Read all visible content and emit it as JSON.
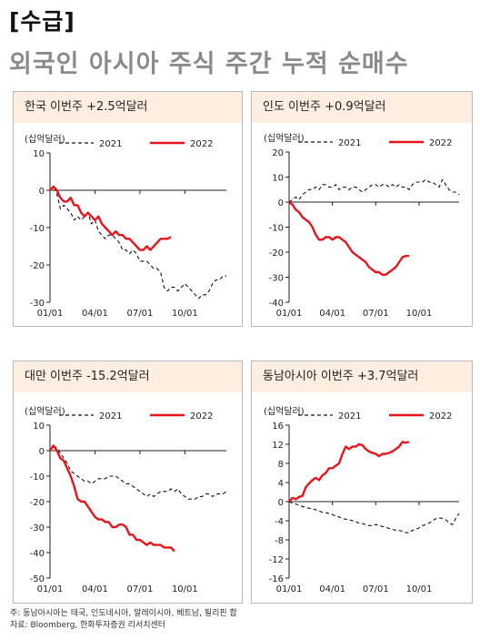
{
  "header": {
    "tag": "[수급]",
    "title": "외국인 아시아 주식 주간 누적 순매수"
  },
  "notes": {
    "line1": "주: 동남아시아는 태국, 인도네시아, 말레이시아, 베트남, 필리핀 합",
    "line2": "자료: Bloomberg, 한화투자증권 리서치센터"
  },
  "colors": {
    "y2021": "#111111",
    "y2022": "#e8141b",
    "title_bg": "#fdeee1",
    "frame": "#b8b8b8"
  },
  "chart_data": [
    {
      "id": "korea",
      "type": "line",
      "title": "한국 이번주 +2.5억달러",
      "ylabel": "(십억달러)",
      "ylim": [
        -30,
        10
      ],
      "yticks": [
        10,
        0,
        -10,
        -20,
        -30
      ],
      "xticks": [
        "01/01",
        "04/01",
        "07/01",
        "10/01"
      ],
      "series": [
        {
          "name": "2021",
          "style": "dashed",
          "x": [
            0,
            1,
            2,
            3,
            4,
            5,
            6,
            7,
            8,
            9,
            10,
            11,
            12,
            13,
            14,
            15,
            16,
            17,
            18,
            19,
            20,
            21,
            22,
            23,
            24,
            25,
            26,
            27,
            28,
            29,
            30,
            31,
            32,
            33,
            34,
            35,
            36,
            37,
            38,
            39,
            40,
            41,
            42,
            43,
            44,
            45,
            46,
            47,
            48,
            49,
            50,
            51
          ],
          "values": [
            0,
            1,
            -1,
            -5,
            -4,
            -5,
            -6,
            -8,
            -7,
            -8,
            -7,
            -6,
            -9,
            -8,
            -11,
            -12,
            -13,
            -12,
            -12,
            -13,
            -14,
            -16,
            -16,
            -17,
            -16,
            -17,
            -19,
            -19,
            -19,
            -20,
            -21,
            -21,
            -22,
            -26,
            -27,
            -26,
            -26,
            -27,
            -26,
            -25,
            -26,
            -27,
            -28,
            -29,
            -28,
            -28,
            -27,
            -25,
            -24,
            -24,
            -23,
            -23
          ]
        },
        {
          "name": "2022",
          "style": "solid",
          "x": [
            0,
            1,
            2,
            3,
            4,
            5,
            6,
            7,
            8,
            9,
            10,
            11,
            12,
            13,
            14,
            15,
            16,
            17,
            18,
            19,
            20,
            21,
            22,
            23,
            24,
            25,
            26,
            27,
            28,
            29,
            30,
            31,
            32,
            33,
            34,
            35
          ],
          "values": [
            0,
            1,
            0,
            -2,
            -3,
            -3,
            -2,
            -4,
            -4,
            -6,
            -7,
            -6,
            -7,
            -8,
            -7,
            -9,
            -10,
            -11,
            -12,
            -11,
            -12,
            -12,
            -13,
            -13,
            -14,
            -15,
            -16,
            -16,
            -15,
            -16,
            -15,
            -14,
            -13,
            -13,
            -13,
            -12.5
          ]
        }
      ]
    },
    {
      "id": "india",
      "type": "line",
      "title": "인도 이번주 +0.9억달러",
      "ylabel": "(십억달러)",
      "ylim": [
        -40,
        20
      ],
      "yticks": [
        20,
        10,
        0,
        -10,
        -20,
        -30,
        -40
      ],
      "xticks": [
        "01/01",
        "04/01",
        "07/01",
        "10/01"
      ],
      "series": [
        {
          "name": "2021",
          "style": "dashed",
          "x": [
            0,
            1,
            2,
            3,
            4,
            5,
            6,
            7,
            8,
            9,
            10,
            11,
            12,
            13,
            14,
            15,
            16,
            17,
            18,
            19,
            20,
            21,
            22,
            23,
            24,
            25,
            26,
            27,
            28,
            29,
            30,
            31,
            32,
            33,
            34,
            35,
            36,
            37,
            38,
            39,
            40,
            41,
            42,
            43,
            44,
            45,
            46,
            47,
            48,
            49,
            50,
            51
          ],
          "values": [
            0,
            1,
            2,
            1,
            3,
            4,
            5,
            5,
            6,
            5,
            7,
            7,
            6,
            6,
            7,
            5,
            6,
            6,
            5,
            6,
            6,
            5,
            4,
            5,
            6,
            7,
            7,
            6,
            7,
            7,
            6,
            7,
            6,
            7,
            6,
            6,
            5,
            7,
            8,
            8,
            8,
            9,
            8,
            8,
            7,
            6,
            9,
            7,
            5,
            4,
            4,
            3
          ]
        },
        {
          "name": "2022",
          "style": "solid",
          "x": [
            0,
            1,
            2,
            3,
            4,
            5,
            6,
            7,
            8,
            9,
            10,
            11,
            12,
            13,
            14,
            15,
            16,
            17,
            18,
            19,
            20,
            21,
            22,
            23,
            24,
            25,
            26,
            27,
            28,
            29,
            30,
            31,
            32,
            33,
            34,
            35,
            36
          ],
          "values": [
            0,
            -1,
            -3,
            -4,
            -6,
            -7,
            -8,
            -10,
            -13,
            -15,
            -15,
            -14,
            -14,
            -15,
            -14,
            -14,
            -15,
            -16,
            -18,
            -20,
            -21,
            -22,
            -23,
            -24,
            -26,
            -27,
            -28,
            -28,
            -29,
            -29,
            -28,
            -27,
            -26,
            -24,
            -22,
            -21.5,
            -21.5
          ]
        }
      ]
    },
    {
      "id": "taiwan",
      "type": "line",
      "title": "대만 이번주 -15.2억달러",
      "ylabel": "(십억달러)",
      "ylim": [
        -50,
        10
      ],
      "yticks": [
        10,
        0,
        -10,
        -20,
        -30,
        -40,
        -50
      ],
      "xticks": [
        "01/01",
        "04/01",
        "07/01",
        "10/01"
      ],
      "series": [
        {
          "name": "2021",
          "style": "dashed",
          "x": [
            0,
            1,
            2,
            3,
            4,
            5,
            6,
            7,
            8,
            9,
            10,
            11,
            12,
            13,
            14,
            15,
            16,
            17,
            18,
            19,
            20,
            21,
            22,
            23,
            24,
            25,
            26,
            27,
            28,
            29,
            30,
            31,
            32,
            33,
            34,
            35,
            36,
            37,
            38,
            39,
            40,
            41,
            42,
            43,
            44,
            45,
            46,
            47,
            48,
            49,
            50,
            51
          ],
          "values": [
            0,
            2,
            1,
            -1,
            -3,
            -5,
            -8,
            -9,
            -10,
            -11,
            -12,
            -12,
            -13,
            -12,
            -11,
            -11,
            -11,
            -10,
            -10,
            -10,
            -11,
            -12,
            -13,
            -13,
            -14,
            -15,
            -16,
            -17,
            -18,
            -17,
            -18,
            -17,
            -16,
            -16,
            -16,
            -15,
            -16,
            -15,
            -17,
            -18,
            -19,
            -19,
            -19,
            -18,
            -18,
            -17,
            -17,
            -18,
            -17,
            -17,
            -17,
            -16
          ]
        },
        {
          "name": "2022",
          "style": "solid",
          "x": [
            0,
            1,
            2,
            3,
            4,
            5,
            6,
            7,
            8,
            9,
            10,
            11,
            12,
            13,
            14,
            15,
            16,
            17,
            18,
            19,
            20,
            21,
            22,
            23,
            24,
            25,
            26,
            27,
            28,
            29,
            30,
            31,
            32,
            33,
            34,
            35,
            36
          ],
          "values": [
            0,
            2,
            0,
            -3,
            -4,
            -7,
            -10,
            -14,
            -19,
            -20,
            -20,
            -22,
            -24,
            -26,
            -27,
            -27,
            -28,
            -28,
            -30,
            -30,
            -29,
            -29,
            -30,
            -33,
            -33,
            -35,
            -35,
            -36,
            -37,
            -36,
            -37,
            -37,
            -37,
            -38,
            -38,
            -38,
            -39.5
          ]
        }
      ]
    },
    {
      "id": "southeast_asia",
      "type": "line",
      "title": "동남아시아 이번주 +3.7억달러",
      "ylabel": "(십억달러)",
      "ylim": [
        -16,
        16
      ],
      "yticks": [
        16,
        12,
        8,
        4,
        0,
        -4,
        -8,
        -12,
        -16
      ],
      "xticks": [
        "01/01",
        "04/01",
        "07/01",
        "10/01"
      ],
      "series": [
        {
          "name": "2021",
          "style": "dashed",
          "x": [
            0,
            1,
            2,
            3,
            4,
            5,
            6,
            7,
            8,
            9,
            10,
            11,
            12,
            13,
            14,
            15,
            16,
            17,
            18,
            19,
            20,
            21,
            22,
            23,
            24,
            25,
            26,
            27,
            28,
            29,
            30,
            31,
            32,
            33,
            34,
            35,
            36,
            37,
            38,
            39,
            40,
            41,
            42,
            43,
            44,
            45,
            46,
            47,
            48,
            49,
            50,
            51
          ],
          "values": [
            0,
            -0.3,
            -0.5,
            -0.8,
            -1,
            -1.2,
            -1.4,
            -1.5,
            -1.7,
            -2,
            -2.2,
            -2.3,
            -2.5,
            -2.7,
            -3,
            -3.2,
            -3.5,
            -3.7,
            -3.8,
            -4,
            -4.2,
            -4.5,
            -4.6,
            -4.8,
            -5,
            -5,
            -4.8,
            -5,
            -5.2,
            -5.4,
            -5.6,
            -5.8,
            -6,
            -6,
            -6.2,
            -6.5,
            -6.5,
            -6,
            -5.8,
            -5.5,
            -5,
            -4.8,
            -4.5,
            -4,
            -3.6,
            -3.4,
            -3.5,
            -3.8,
            -4.5,
            -4.8,
            -3.5,
            -2.5
          ]
        },
        {
          "name": "2022",
          "style": "solid",
          "x": [
            0,
            1,
            2,
            3,
            4,
            5,
            6,
            7,
            8,
            9,
            10,
            11,
            12,
            13,
            14,
            15,
            16,
            17,
            18,
            19,
            20,
            21,
            22,
            23,
            24,
            25,
            26,
            27,
            28,
            29,
            30,
            31,
            32,
            33,
            34,
            35,
            36
          ],
          "values": [
            0,
            0.8,
            0.5,
            1,
            1.2,
            3,
            3.8,
            4.5,
            5,
            4.5,
            5.5,
            6,
            7,
            7,
            7.5,
            8,
            10,
            11.5,
            11,
            11.5,
            11.5,
            12,
            11.8,
            11,
            10.5,
            10.2,
            10,
            9.5,
            10,
            10,
            10.2,
            10.5,
            11,
            11.5,
            12.5,
            12.3,
            12.5
          ]
        }
      ]
    }
  ]
}
